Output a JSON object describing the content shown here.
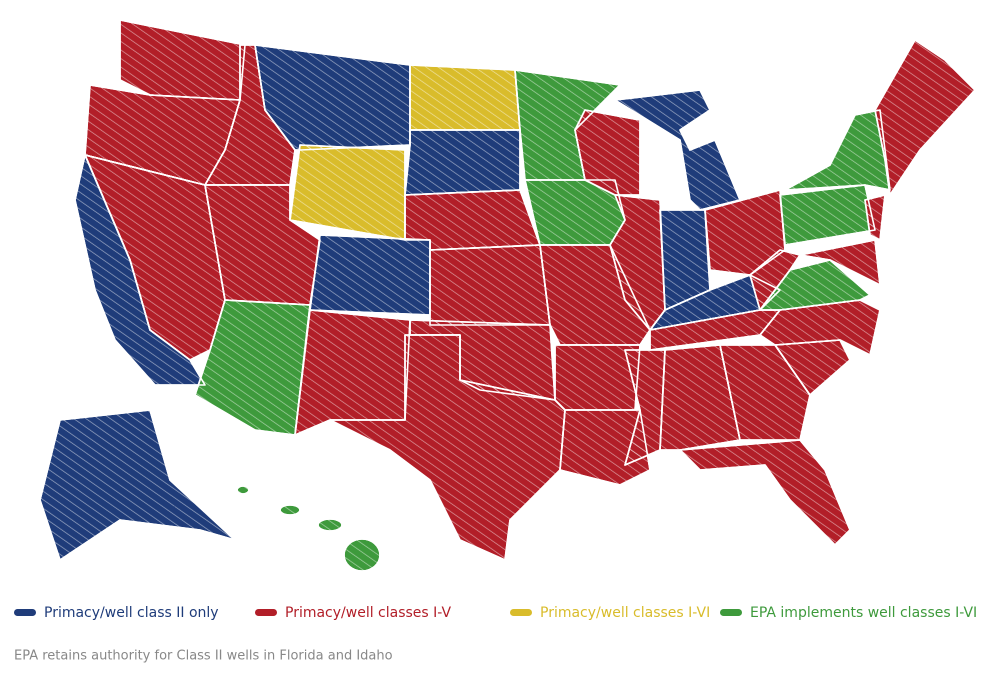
{
  "legend": [
    {
      "label": "Primacy/well class II only",
      "color": "#1f3c7a"
    },
    {
      "label": "Primacy/well classes I-V",
      "color": "#b21e28"
    },
    {
      "label": "Primacy/well classes I-VI",
      "color": "#d9bc2b"
    },
    {
      "label": "EPA implements well classes I-VI",
      "color": "#3e9a3c"
    }
  ],
  "note": "EPA retains authority for Class II wells in Florida and Idaho"
}
